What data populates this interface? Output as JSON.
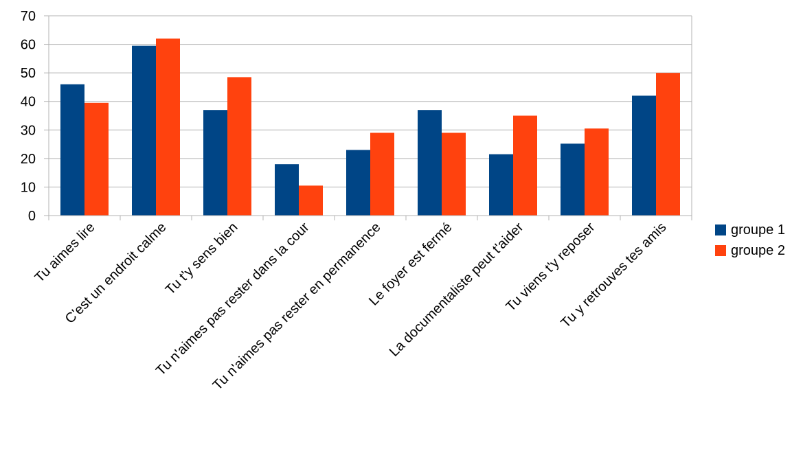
{
  "chart_data": {
    "type": "bar",
    "categories": [
      "Tu aimes lire",
      "C'est un endroit calme",
      "Tu t'y sens bien",
      "Tu n'aimes pas rester dans la cour",
      "Tu n'aimes pas rester en permanence",
      "Le foyer est fermé",
      "La documentaliste peut t'aider",
      "Tu viens t'y reposer",
      "Tu y retrouves tes amis"
    ],
    "series": [
      {
        "name": "groupe 1",
        "color": "#004586",
        "values": [
          46,
          59.5,
          37,
          18,
          23,
          37,
          21.5,
          25.2,
          42
        ]
      },
      {
        "name": "groupe 2",
        "color": "#FF420E",
        "values": [
          39.5,
          62,
          48.5,
          10.5,
          29,
          29,
          35,
          30.5,
          50
        ]
      }
    ],
    "yticks": [
      "0",
      "10",
      "20",
      "30",
      "40",
      "50",
      "60",
      "70"
    ],
    "ylim": [
      0,
      70
    ],
    "grid": true,
    "legend_position": "right"
  }
}
